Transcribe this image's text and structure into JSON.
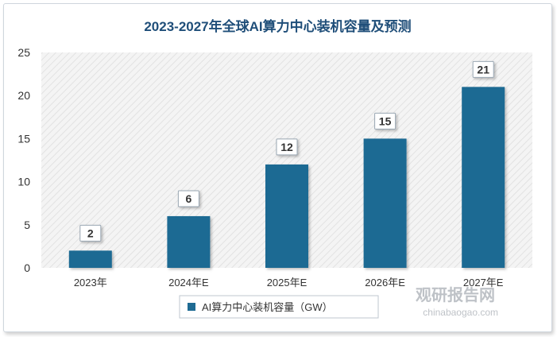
{
  "chart_data": {
    "type": "bar",
    "title": "2023-2027年全球AI算力中心装机容量及预测",
    "categories": [
      "2023年",
      "2024年E",
      "2025年E",
      "2026年E",
      "2027年E"
    ],
    "series": [
      {
        "name": "AI算力中心装机容量（GW）",
        "values": [
          2,
          6,
          12,
          15,
          21
        ]
      }
    ],
    "ylim": [
      0,
      25
    ],
    "yticks": [
      0,
      5,
      10,
      15,
      20,
      25
    ],
    "grid": false,
    "plot_background": "diagonal-hatch",
    "legend_position": "bottom",
    "data_labels": true,
    "colors": {
      "bar": "#1f6b93",
      "title": "#1f4e79",
      "label_border": "#9aa7b3"
    }
  },
  "watermark": {
    "brand": "观研报告网",
    "url": "chinabaogao.com"
  }
}
